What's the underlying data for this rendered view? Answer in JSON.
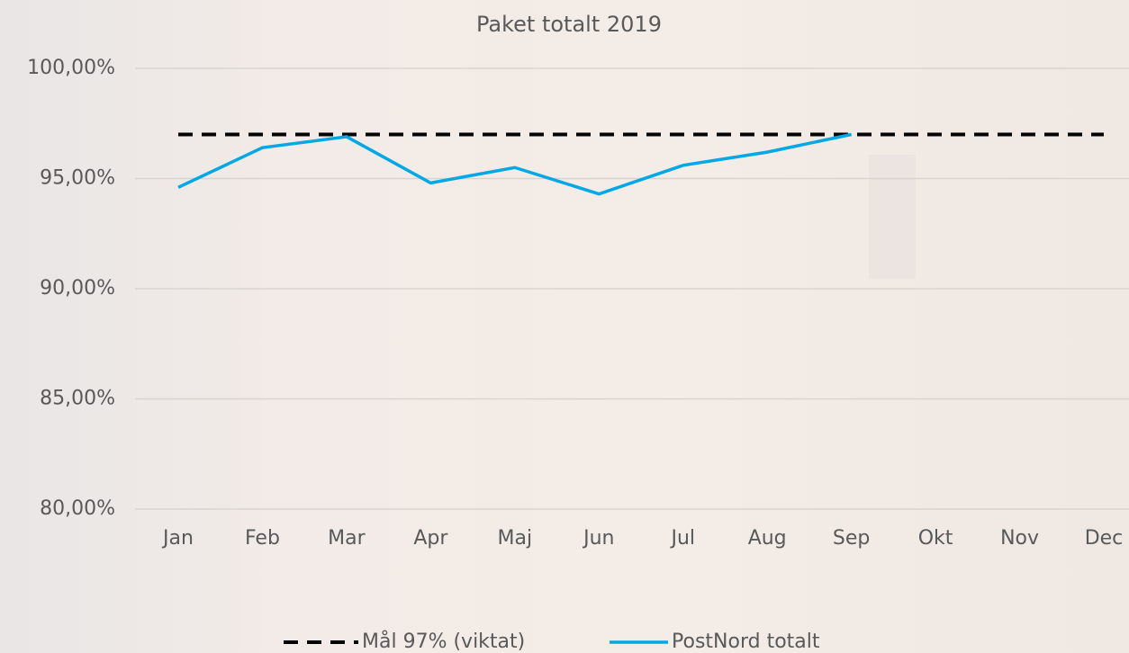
{
  "chart_data": {
    "type": "line",
    "title": "Paket totalt 2019",
    "categories": [
      "Jan",
      "Feb",
      "Mar",
      "Apr",
      "Maj",
      "Jun",
      "Jul",
      "Aug",
      "Sep",
      "Okt",
      "Nov",
      "Dec"
    ],
    "series": [
      {
        "name": "Mål 97% (viktat)",
        "color": "#000000",
        "dashed": true,
        "values": [
          97,
          97,
          97,
          97,
          97,
          97,
          97,
          97,
          97,
          97,
          97,
          97
        ]
      },
      {
        "name": "PostNord totalt",
        "color": "#00a9e6",
        "dashed": false,
        "values": [
          94.6,
          96.4,
          96.9,
          94.8,
          95.5,
          94.3,
          95.6,
          96.2,
          97.0,
          null,
          null,
          null
        ]
      }
    ],
    "ylim": [
      80,
      100
    ],
    "yticks": [
      {
        "value": 80,
        "label": "80,00%"
      },
      {
        "value": 85,
        "label": "85,00%"
      },
      {
        "value": 90,
        "label": "90,00%"
      },
      {
        "value": 95,
        "label": "95,00%"
      },
      {
        "value": 100,
        "label": "100,00%"
      }
    ],
    "grid": true,
    "legend": "bottom"
  }
}
